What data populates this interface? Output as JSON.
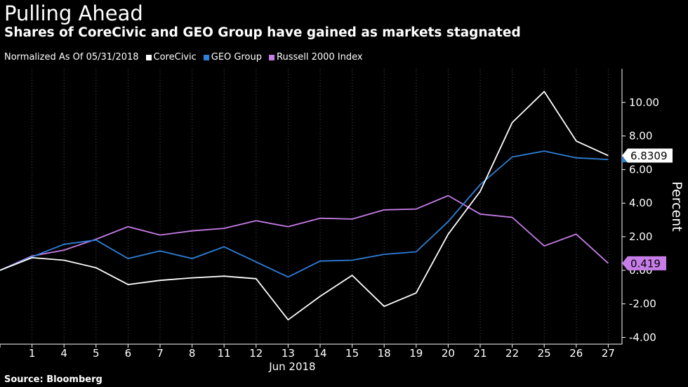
{
  "header": {
    "title": "Pulling Ahead",
    "subtitle": "Shares of CoreCivic and GEO Group have gained as markets stagnated"
  },
  "legend": {
    "note": "Normalized As Of 05/31/2018",
    "items": [
      {
        "label": "CoreCivic",
        "color": "#ffffff"
      },
      {
        "label": "GEO Group",
        "color": "#2e7fd8"
      },
      {
        "label": "Russell 2000 Index",
        "color": "#c77de8"
      }
    ]
  },
  "footer": {
    "source": "Source: Bloomberg"
  },
  "chart_data": {
    "type": "line",
    "categories": [
      "",
      "1",
      "4",
      "5",
      "6",
      "7",
      "8",
      "11",
      "12",
      "13",
      "14",
      "15",
      "18",
      "19",
      "20",
      "21",
      "22",
      "25",
      "26",
      "27"
    ],
    "xlabel": "Jun 2018",
    "ylabel": "Percent",
    "ylim": [
      -4.4,
      12.0
    ],
    "yticks": [
      -4.0,
      -2.0,
      0.0,
      2.0,
      4.0,
      6.0,
      8.0,
      10.0
    ],
    "ytick_labels": [
      "-4.00",
      "-2.00",
      "0.00",
      "2.00",
      "4.00",
      "6.00",
      "8.00",
      "10.00"
    ],
    "grid": "vertical-dotted",
    "legend_position": "top",
    "series": [
      {
        "name": "CoreCivic",
        "color": "#ffffff",
        "values": [
          0.0,
          0.75,
          0.6,
          0.15,
          -0.85,
          -0.6,
          -0.45,
          -0.35,
          -0.5,
          -2.95,
          -1.55,
          -0.3,
          -2.15,
          -1.35,
          2.15,
          4.7,
          8.8,
          10.65,
          7.7,
          6.8309
        ]
      },
      {
        "name": "GEO Group",
        "color": "#2e7fd8",
        "values": [
          0.0,
          0.8,
          1.55,
          1.8,
          0.7,
          1.15,
          0.7,
          1.4,
          0.5,
          -0.4,
          0.55,
          0.6,
          0.95,
          1.1,
          2.9,
          5.1,
          6.75,
          7.1,
          6.7,
          6.6
        ]
      },
      {
        "name": "Russell 2000 Index",
        "color": "#c77de8",
        "values": [
          0.0,
          0.85,
          1.2,
          1.85,
          2.6,
          2.1,
          2.35,
          2.5,
          2.95,
          2.6,
          3.1,
          3.05,
          3.6,
          3.65,
          4.45,
          3.35,
          3.15,
          1.45,
          2.15,
          0.419
        ]
      }
    ],
    "last_value_labels": [
      {
        "series": "CoreCivic",
        "text": "6.8309",
        "bg": "#ffffff",
        "fg": "#000000"
      },
      {
        "series": "Russell 2000 Index",
        "text": "0.419",
        "bg": "#c77de8",
        "fg": "#000000"
      }
    ]
  }
}
